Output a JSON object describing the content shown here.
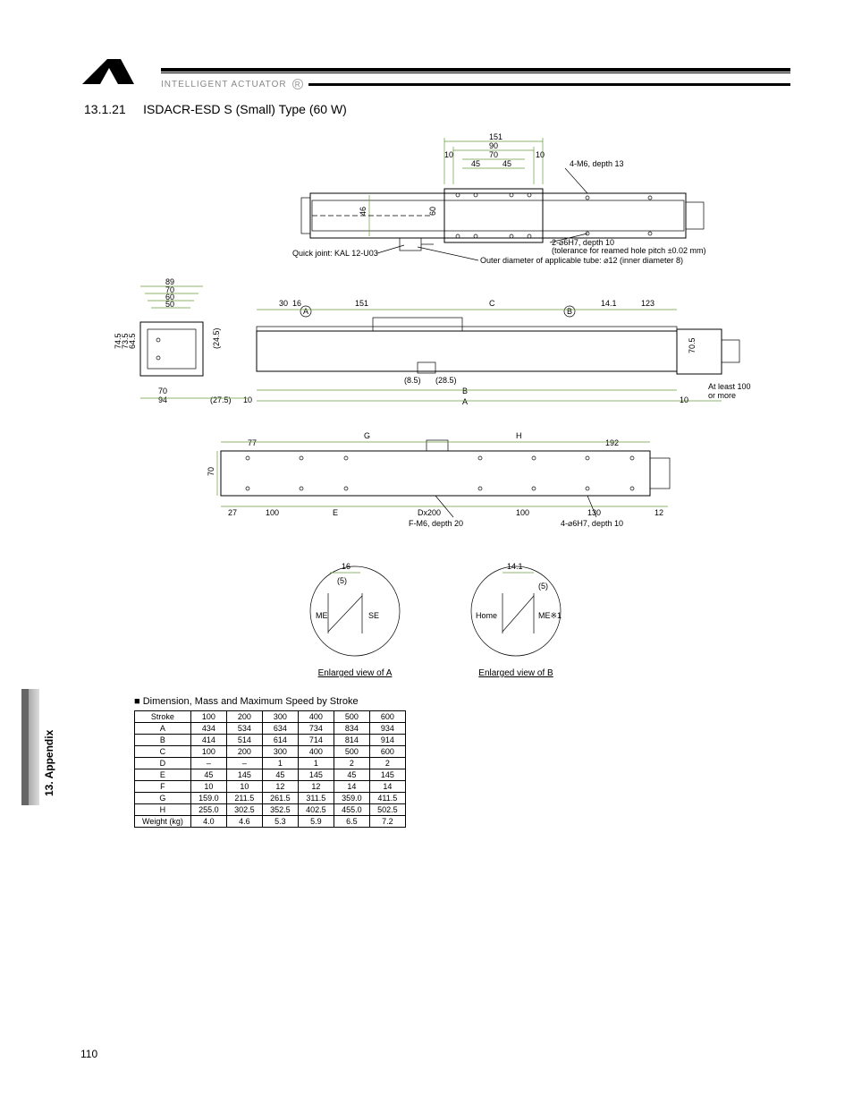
{
  "brand": "INTELLIGENT ACTUATOR",
  "section_number": "13.1.21",
  "section_title": "ISDACR-ESD S (Small) Type (60 W)",
  "side_label": "13. Appendix",
  "page_number": "110",
  "top_view": {
    "dims_top": [
      "151",
      "90",
      "70",
      "45",
      "45",
      "10",
      "10"
    ],
    "dims_left": [
      "46",
      "60"
    ],
    "note_holes": "4-M6, depth 13",
    "note_reamed": "2-⌀6H7, depth 10\n(tolerance for reamed hole pitch ±0.02 mm)",
    "note_tube": "Outer diameter of applicable tube: ⌀12 (inner diameter 8)",
    "quick_joint": "Quick joint: KAL 12-U03"
  },
  "side_view": {
    "left_dims": [
      "89",
      "70",
      "60",
      "50",
      "94",
      "70",
      "(27.5)",
      "10",
      "(24.5)",
      "74.5",
      "73.5",
      "64.5"
    ],
    "mid_dims": [
      "30",
      "16",
      "151",
      "(8.5)",
      "(28.5)",
      "C",
      "B",
      "A",
      "14.1",
      "123",
      "10",
      "70.5"
    ],
    "right_note": "At least 100\nor more"
  },
  "bottom_view": {
    "dims": [
      "77",
      "G",
      "H",
      "192",
      "27",
      "100",
      "E",
      "Dx200",
      "100",
      "130",
      "12",
      "70"
    ],
    "note_f": "F-M6, depth 20",
    "note_4h": "4-⌀6H7, depth 10"
  },
  "detail_a": {
    "title": "Enlarged view of A",
    "dims": [
      "16",
      "(5)",
      "ME",
      "SE"
    ]
  },
  "detail_b": {
    "title": "Enlarged view of B",
    "dims": [
      "14.1",
      "(5)",
      "Home",
      "ME※1"
    ]
  },
  "table": {
    "title": "■ Dimension, Mass and Maximum Speed by Stroke",
    "columns": [
      "Stroke",
      "100",
      "200",
      "300",
      "400",
      "500",
      "600"
    ],
    "rows": [
      [
        "A",
        "434",
        "534",
        "634",
        "734",
        "834",
        "934"
      ],
      [
        "B",
        "414",
        "514",
        "614",
        "714",
        "814",
        "914"
      ],
      [
        "C",
        "100",
        "200",
        "300",
        "400",
        "500",
        "600"
      ],
      [
        "D",
        "–",
        "–",
        "1",
        "1",
        "2",
        "2"
      ],
      [
        "E",
        "45",
        "145",
        "45",
        "145",
        "45",
        "145"
      ],
      [
        "F",
        "10",
        "10",
        "12",
        "12",
        "14",
        "14"
      ],
      [
        "G",
        "159.0",
        "211.5",
        "261.5",
        "311.5",
        "359.0",
        "411.5"
      ],
      [
        "H",
        "255.0",
        "302.5",
        "352.5",
        "402.5",
        "455.0",
        "502.5"
      ],
      [
        "Weight (kg)",
        "4.0",
        "4.6",
        "5.3",
        "5.9",
        "6.5",
        "7.2"
      ]
    ],
    "header_bg": "#ffffff",
    "border_color": "#000000"
  },
  "colors": {
    "dim_line": "#6a9b3e",
    "outline": "#000000",
    "text": "#000000",
    "brand_text": "#888888"
  }
}
